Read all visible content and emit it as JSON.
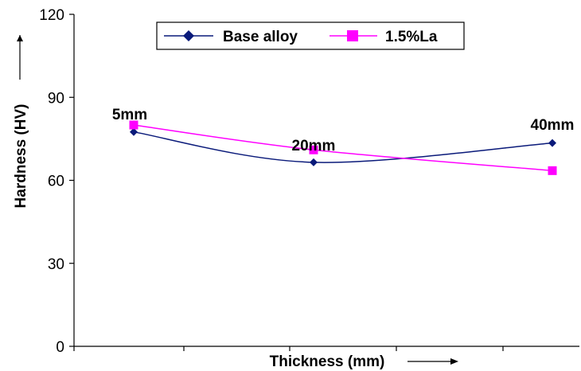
{
  "chart_data": {
    "type": "line",
    "xlabel": "Thickness (mm)",
    "ylabel": "Hardness (HV)",
    "ylim": [
      0,
      120
    ],
    "yticks": [
      "0",
      "30",
      "60",
      "90",
      "120"
    ],
    "categories": [
      "5mm",
      "20mm",
      "40mm"
    ],
    "grid": false,
    "legend_position": "top",
    "series": [
      {
        "name": "Base alloy",
        "values": [
          77.5,
          66.5,
          73.5
        ],
        "color": "#0a1a7a",
        "marker": "diamond"
      },
      {
        "name": "1.5%La",
        "values": [
          80,
          71,
          63.5
        ],
        "color": "#ff00ff",
        "marker": "square"
      }
    ]
  }
}
